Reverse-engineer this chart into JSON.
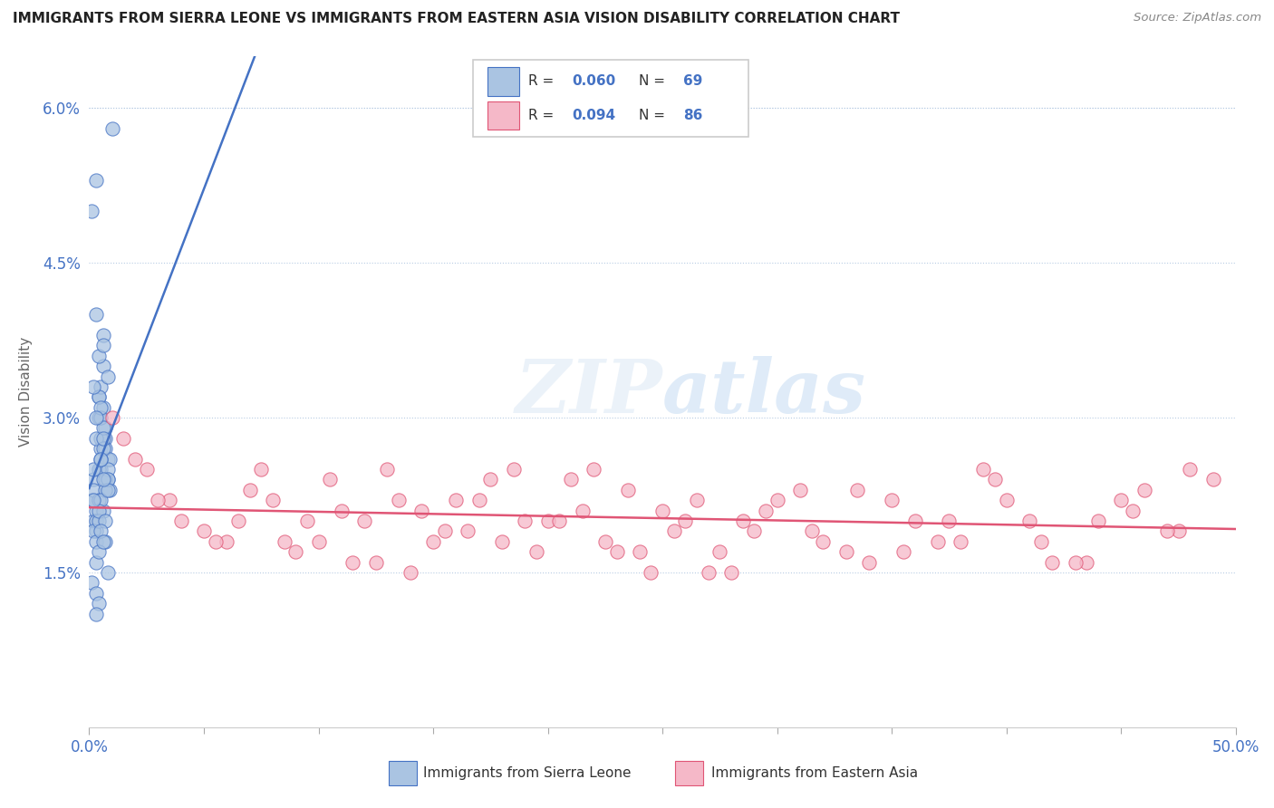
{
  "title": "IMMIGRANTS FROM SIERRA LEONE VS IMMIGRANTS FROM EASTERN ASIA VISION DISABILITY CORRELATION CHART",
  "source": "Source: ZipAtlas.com",
  "ylabel": "Vision Disability",
  "xlim": [
    0.0,
    0.5
  ],
  "ylim": [
    0.0,
    0.065
  ],
  "ytick_vals": [
    0.0,
    0.015,
    0.03,
    0.045,
    0.06
  ],
  "ytick_labels": [
    "",
    "1.5%",
    "3.0%",
    "4.5%",
    "6.0%"
  ],
  "legend_R1": "R = 0.060",
  "legend_N1": "N = 69",
  "legend_R2": "R = 0.094",
  "legend_N2": "N = 86",
  "color_sl": "#aac4e2",
  "color_ea": "#f5b8c8",
  "line_color_sl": "#4472c4",
  "line_color_ea": "#e05575",
  "background_color": "#ffffff",
  "sl_label": "Immigrants from Sierra Leone",
  "ea_label": "Immigrants from Eastern Asia",
  "sl_x": [
    0.005,
    0.01,
    0.003,
    0.008,
    0.002,
    0.006,
    0.004,
    0.007,
    0.003,
    0.005,
    0.001,
    0.009,
    0.004,
    0.006,
    0.002,
    0.008,
    0.005,
    0.003,
    0.007,
    0.004,
    0.002,
    0.006,
    0.003,
    0.005,
    0.008,
    0.001,
    0.004,
    0.006,
    0.003,
    0.007,
    0.005,
    0.002,
    0.009,
    0.004,
    0.006,
    0.003,
    0.007,
    0.005,
    0.002,
    0.008,
    0.004,
    0.006,
    0.003,
    0.005,
    0.007,
    0.002,
    0.004,
    0.006,
    0.008,
    0.003,
    0.005,
    0.007,
    0.002,
    0.004,
    0.006,
    0.003,
    0.008,
    0.005,
    0.001,
    0.007,
    0.004,
    0.006,
    0.003,
    0.005,
    0.008,
    0.002,
    0.004,
    0.006,
    0.003
  ],
  "sl_y": [
    0.027,
    0.058,
    0.053,
    0.024,
    0.022,
    0.035,
    0.03,
    0.028,
    0.04,
    0.025,
    0.05,
    0.023,
    0.032,
    0.038,
    0.02,
    0.026,
    0.033,
    0.021,
    0.029,
    0.036,
    0.024,
    0.031,
    0.019,
    0.028,
    0.034,
    0.022,
    0.025,
    0.037,
    0.02,
    0.027,
    0.03,
    0.023,
    0.026,
    0.032,
    0.021,
    0.028,
    0.024,
    0.031,
    0.019,
    0.025,
    0.022,
    0.029,
    0.018,
    0.026,
    0.023,
    0.033,
    0.02,
    0.027,
    0.024,
    0.03,
    0.022,
    0.018,
    0.025,
    0.021,
    0.028,
    0.016,
    0.023,
    0.026,
    0.014,
    0.02,
    0.017,
    0.024,
    0.013,
    0.019,
    0.015,
    0.022,
    0.012,
    0.018,
    0.011
  ],
  "ea_x": [
    0.01,
    0.025,
    0.04,
    0.06,
    0.08,
    0.1,
    0.12,
    0.14,
    0.16,
    0.18,
    0.2,
    0.22,
    0.24,
    0.26,
    0.28,
    0.3,
    0.32,
    0.34,
    0.36,
    0.38,
    0.4,
    0.42,
    0.44,
    0.46,
    0.48,
    0.015,
    0.035,
    0.055,
    0.075,
    0.095,
    0.115,
    0.135,
    0.155,
    0.175,
    0.195,
    0.215,
    0.235,
    0.255,
    0.275,
    0.295,
    0.315,
    0.335,
    0.355,
    0.375,
    0.395,
    0.415,
    0.435,
    0.455,
    0.475,
    0.02,
    0.05,
    0.07,
    0.09,
    0.11,
    0.13,
    0.15,
    0.17,
    0.19,
    0.21,
    0.23,
    0.25,
    0.27,
    0.29,
    0.31,
    0.33,
    0.35,
    0.37,
    0.39,
    0.41,
    0.43,
    0.45,
    0.47,
    0.49,
    0.03,
    0.065,
    0.085,
    0.105,
    0.125,
    0.145,
    0.165,
    0.185,
    0.205,
    0.225,
    0.245,
    0.265,
    0.285
  ],
  "ea_y": [
    0.03,
    0.025,
    0.02,
    0.018,
    0.022,
    0.018,
    0.02,
    0.015,
    0.022,
    0.018,
    0.02,
    0.025,
    0.017,
    0.02,
    0.015,
    0.022,
    0.018,
    0.016,
    0.02,
    0.018,
    0.022,
    0.016,
    0.02,
    0.023,
    0.025,
    0.028,
    0.022,
    0.018,
    0.025,
    0.02,
    0.016,
    0.022,
    0.019,
    0.024,
    0.017,
    0.021,
    0.023,
    0.019,
    0.017,
    0.021,
    0.019,
    0.023,
    0.017,
    0.02,
    0.024,
    0.018,
    0.016,
    0.021,
    0.019,
    0.026,
    0.019,
    0.023,
    0.017,
    0.021,
    0.025,
    0.018,
    0.022,
    0.02,
    0.024,
    0.017,
    0.021,
    0.015,
    0.019,
    0.023,
    0.017,
    0.022,
    0.018,
    0.025,
    0.02,
    0.016,
    0.022,
    0.019,
    0.024,
    0.022,
    0.02,
    0.018,
    0.024,
    0.016,
    0.021,
    0.019,
    0.025,
    0.02,
    0.018,
    0.015,
    0.022,
    0.02
  ]
}
